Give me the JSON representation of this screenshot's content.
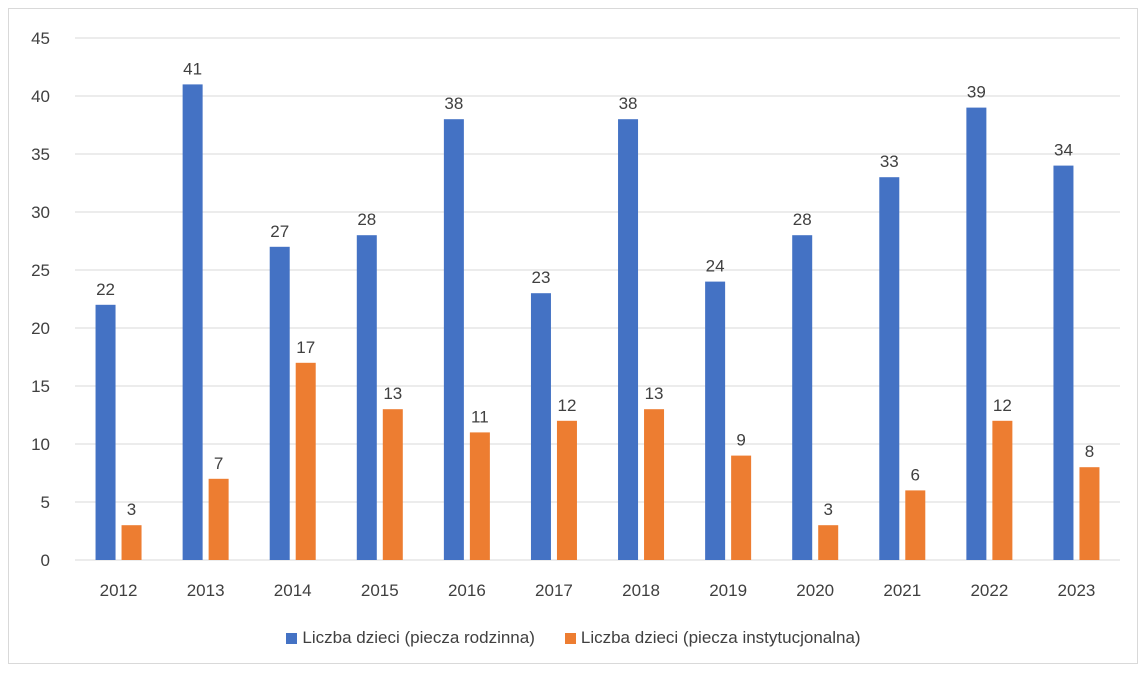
{
  "chart_data": {
    "type": "bar",
    "categories": [
      "2012",
      "2013",
      "2014",
      "2015",
      "2016",
      "2017",
      "2018",
      "2019",
      "2020",
      "2021",
      "2022",
      "2023"
    ],
    "series": [
      {
        "name": "Liczba dzieci (piecza rodzinna)",
        "color": "#4472c4",
        "values": [
          22,
          41,
          27,
          28,
          38,
          23,
          38,
          24,
          28,
          33,
          39,
          34
        ]
      },
      {
        "name": "Liczba dzieci (piecza instytucjonalna)",
        "color": "#ed7d31",
        "values": [
          3,
          7,
          17,
          13,
          11,
          12,
          13,
          9,
          3,
          6,
          12,
          8
        ]
      }
    ],
    "ylim": [
      0,
      45
    ],
    "yticks": [
      0,
      5,
      10,
      15,
      20,
      25,
      30,
      35,
      40,
      45
    ],
    "grid": true,
    "legend": "bottom",
    "data_labels": true
  }
}
